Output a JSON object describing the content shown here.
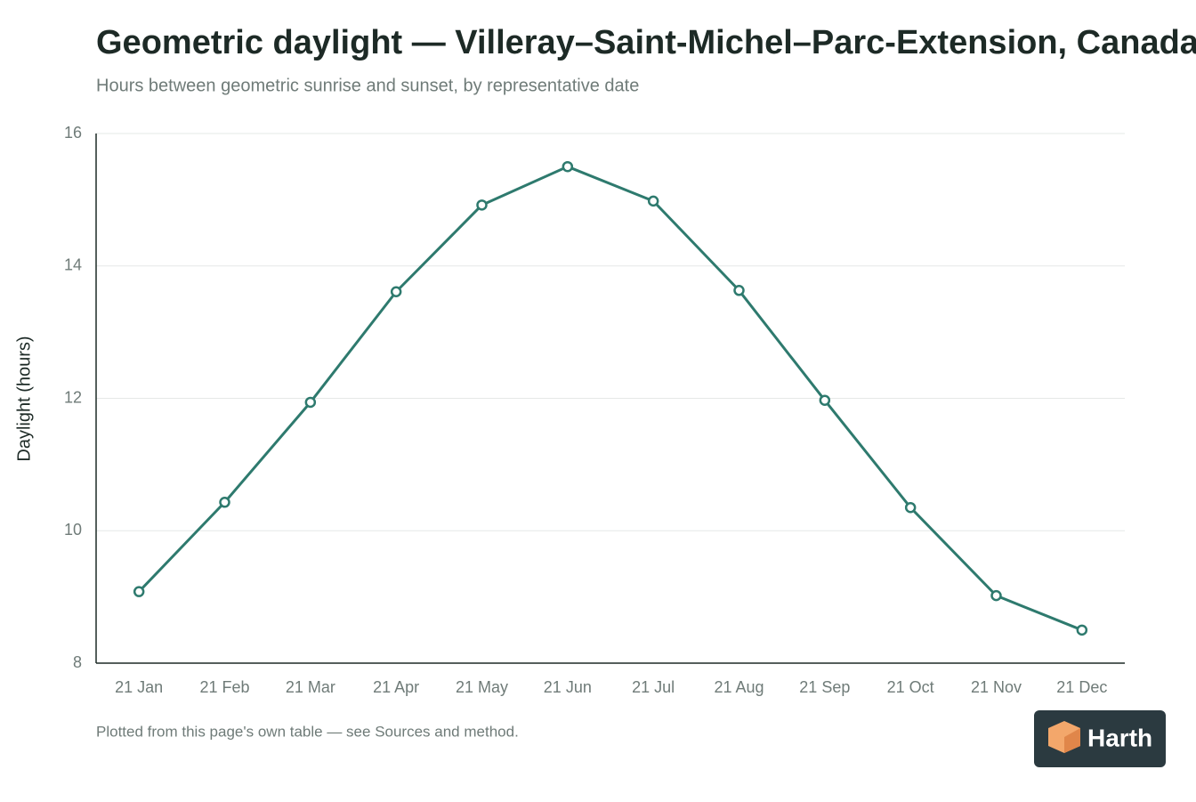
{
  "chart_data": {
    "type": "line",
    "title": "Geometric daylight — Villeray–Saint-Michel–Parc-Extension, Canada",
    "subtitle": "Hours between geometric sunrise and sunset, by representative date",
    "y_label": "Daylight (hours)",
    "note": "Plotted from this page's own table — see Sources and method.",
    "categories": [
      "21 Jan",
      "21 Feb",
      "21 Mar",
      "21 Apr",
      "21 May",
      "21 Jun",
      "21 Jul",
      "21 Aug",
      "21 Sep",
      "21 Oct",
      "21 Nov",
      "21 Dec"
    ],
    "series": [
      {
        "color": "#2e7a6e",
        "values": [
          9.08,
          10.43,
          11.94,
          13.61,
          14.92,
          15.5,
          14.98,
          13.63,
          11.97,
          10.35,
          9.02,
          8.5
        ]
      }
    ],
    "ylim": [
      8,
      16
    ],
    "yticks": [
      8,
      10,
      12,
      14,
      16
    ],
    "grid": true
  },
  "brand": "Harth"
}
